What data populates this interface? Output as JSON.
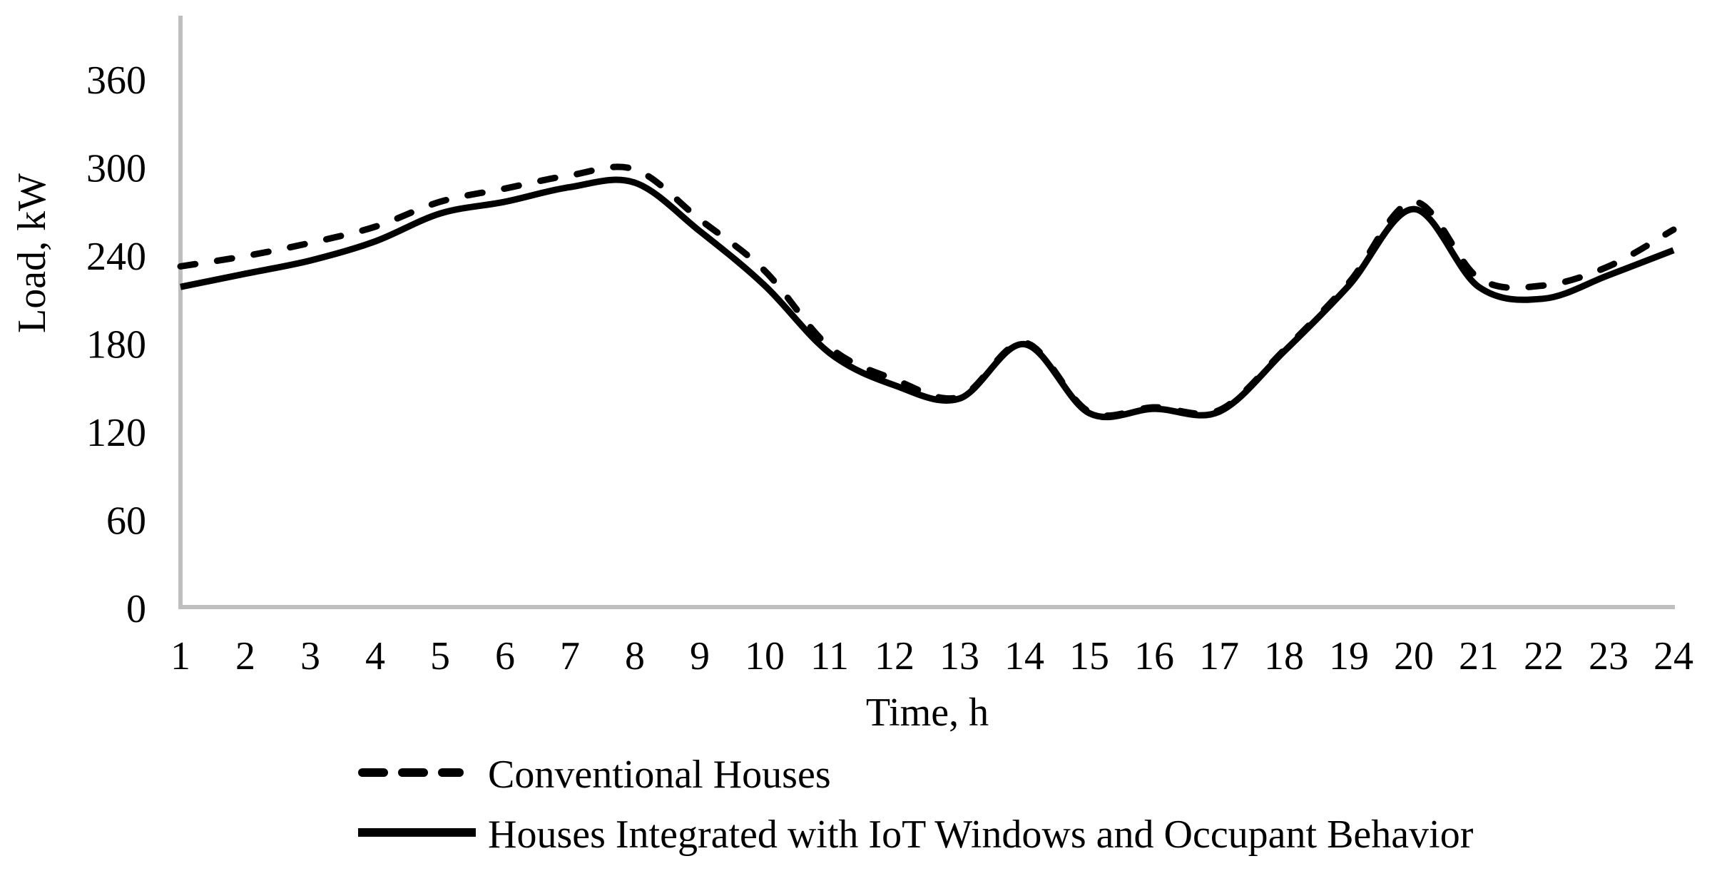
{
  "chart_data": {
    "type": "line",
    "xlabel": "Time, h",
    "ylabel": "Load, kW",
    "x": [
      1,
      2,
      3,
      4,
      5,
      6,
      7,
      8,
      9,
      10,
      11,
      12,
      13,
      14,
      15,
      16,
      17,
      18,
      19,
      20,
      21,
      22,
      23,
      24
    ],
    "yticks": [
      0,
      60,
      120,
      180,
      240,
      300,
      360
    ],
    "ylim": [
      0,
      400
    ],
    "xlim": [
      1,
      24
    ],
    "grid": false,
    "legend_position": "bottom-left",
    "axis_color": "#BFBFBF",
    "line_color": "#000000",
    "series": [
      {
        "name": "Conventional Houses",
        "style": "dashed",
        "values": [
          233,
          240,
          249,
          260,
          277,
          286,
          295,
          299,
          265,
          230,
          178,
          156,
          144,
          181,
          134,
          137,
          135,
          176,
          222,
          277,
          225,
          220,
          233,
          258
        ]
      },
      {
        "name": "Houses Integrated with IoT Windows and Occupant Behavior",
        "style": "solid",
        "values": [
          219,
          228,
          237,
          250,
          269,
          277,
          287,
          290,
          257,
          220,
          174,
          152,
          143,
          180,
          133,
          136,
          134,
          175,
          220,
          272,
          219,
          211,
          227,
          244
        ]
      }
    ]
  }
}
